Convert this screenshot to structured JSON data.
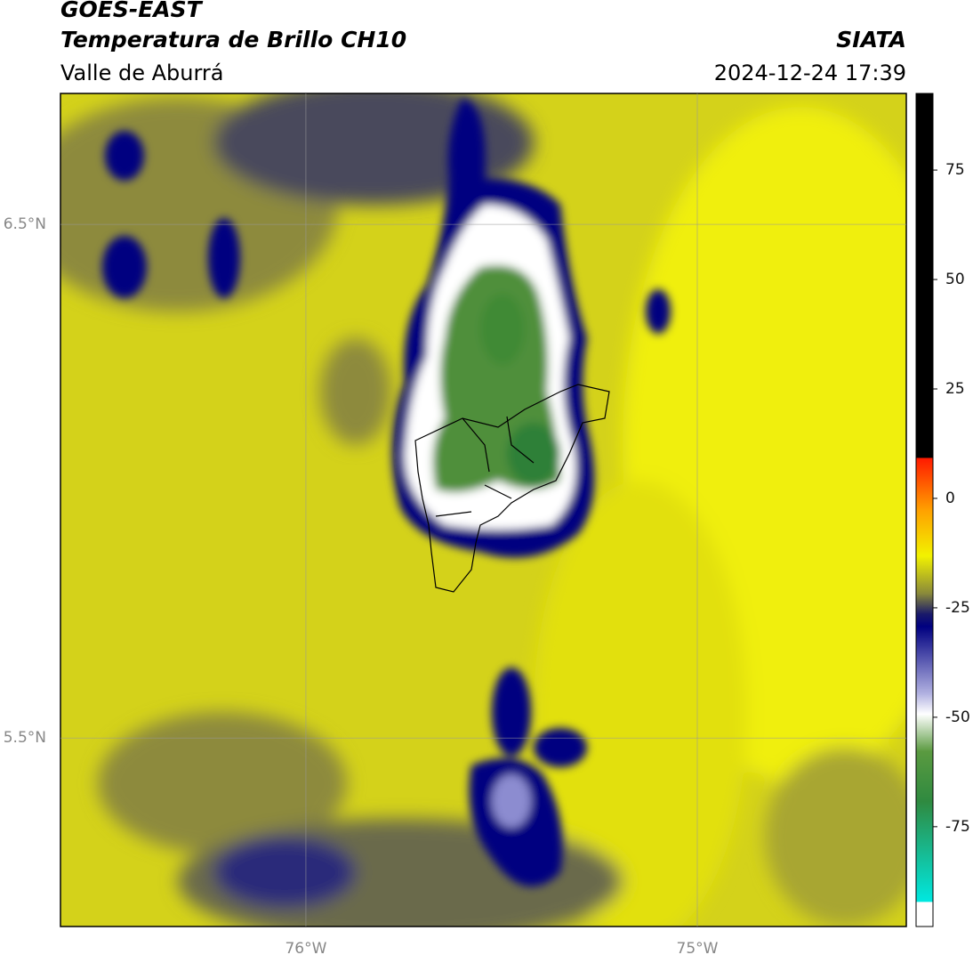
{
  "header": {
    "satellite": "GOES-EAST",
    "product": "Temperatura de Brillo CH10",
    "region": "Valle de Aburrá",
    "agency": "SIATA",
    "datetime": "2024-12-24 17:39"
  },
  "chart_data": {
    "type": "map",
    "xlim": [
      -76.627,
      -74.466
    ],
    "ylim": [
      5.133,
      6.755
    ],
    "xticks": [
      {
        "value": -76,
        "label": "76°W"
      },
      {
        "value": -75,
        "label": "75°W"
      }
    ],
    "yticks": [
      {
        "value": 6.5,
        "label": "6.5°N"
      },
      {
        "value": 5.5,
        "label": "5.5°N"
      }
    ],
    "grid": true,
    "colorbar": {
      "lim": [
        -97.8,
        92.5
      ],
      "ticks": [
        75,
        50,
        25,
        0,
        -25,
        -50,
        -75
      ]
    }
  }
}
